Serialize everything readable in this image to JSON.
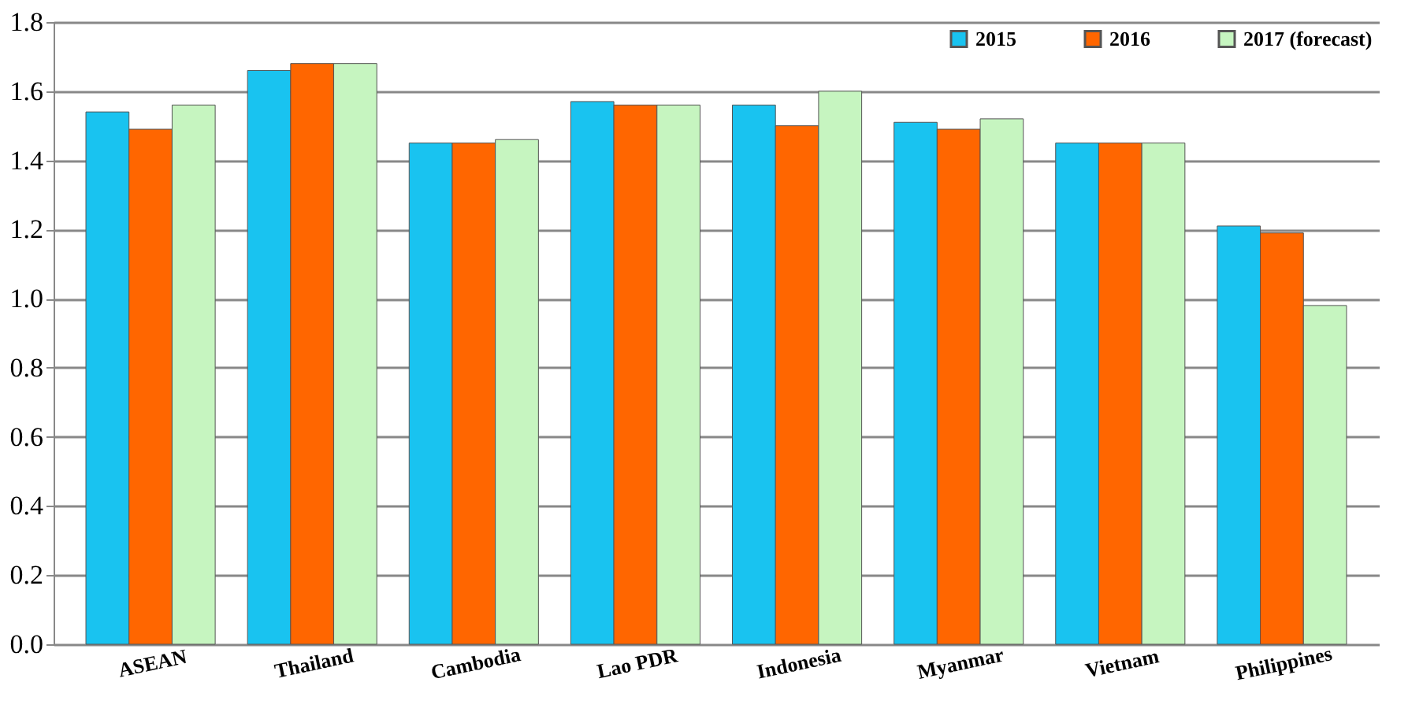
{
  "chart_data": {
    "type": "bar",
    "categories": [
      "ASEAN",
      "Thailand",
      "Cambodia",
      "Lao PDR",
      "Indonesia",
      "Myanmar",
      "Vietnam",
      "Philippines"
    ],
    "series": [
      {
        "name": "2015",
        "color": "#19c3f0",
        "values": [
          1.54,
          1.66,
          1.45,
          1.57,
          1.56,
          1.51,
          1.45,
          1.21
        ]
      },
      {
        "name": "2016",
        "color": "#ff6600",
        "values": [
          1.49,
          1.68,
          1.45,
          1.56,
          1.5,
          1.49,
          1.45,
          1.19
        ]
      },
      {
        "name": "2017 (forecast)",
        "color": "#c6f5c0",
        "values": [
          1.56,
          1.68,
          1.46,
          1.56,
          1.6,
          1.52,
          1.45,
          0.98
        ]
      }
    ],
    "ylim": [
      0,
      1.8
    ],
    "yticks": [
      {
        "value": 0,
        "label": "0.0"
      },
      0.2,
      0.4,
      0.6,
      0.8,
      {
        "value": 1,
        "label": "1.0"
      },
      1.2,
      1.4,
      1.6,
      1.8
    ],
    "grid": "y",
    "legend": "top right"
  }
}
